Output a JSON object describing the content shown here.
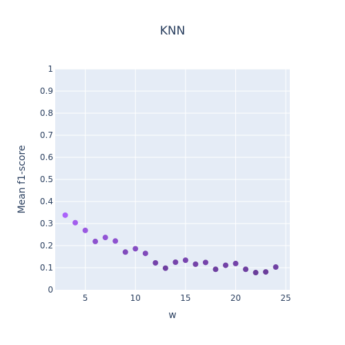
{
  "chart_data": {
    "type": "scatter",
    "title": "KNN",
    "xlabel": "w",
    "ylabel": "Mean f1-score",
    "xlim": [
      2,
      25.4
    ],
    "ylim": [
      0,
      1
    ],
    "xticks": [
      5,
      10,
      15,
      20,
      25
    ],
    "yticks": [
      0,
      0.1,
      0.2,
      0.3,
      0.4,
      0.5,
      0.6,
      0.7,
      0.8,
      0.9,
      1
    ],
    "ytick_labels": [
      "0",
      "0.1",
      "0.2",
      "0.3",
      "0.4",
      "0.5",
      "0.6",
      "0.7",
      "0.8",
      "0.9",
      "1"
    ],
    "grid": true,
    "background_color": "#e5ecf6",
    "color_high": "#ab63fa",
    "color_low": "#6a3d9a",
    "x": [
      3,
      4,
      5,
      6,
      7,
      8,
      9,
      10,
      11,
      12,
      13,
      14,
      15,
      16,
      17,
      18,
      19,
      20,
      21,
      22,
      23,
      24
    ],
    "y": [
      0.338,
      0.304,
      0.269,
      0.219,
      0.237,
      0.221,
      0.171,
      0.186,
      0.165,
      0.122,
      0.098,
      0.125,
      0.134,
      0.116,
      0.124,
      0.093,
      0.111,
      0.119,
      0.093,
      0.078,
      0.081,
      0.103
    ]
  }
}
